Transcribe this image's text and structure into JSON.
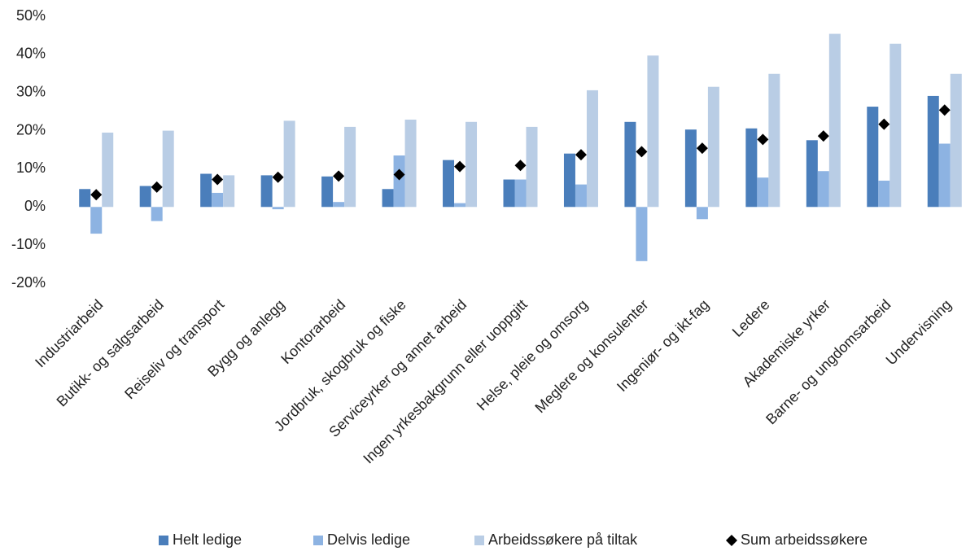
{
  "chart_data": {
    "type": "bar",
    "categories": [
      "Industriarbeid",
      "Butikk- og salgsarbeid",
      "Reiseliv og transport",
      "Bygg og anlegg",
      "Kontorarbeid",
      "Jordbruk, skogbruk og fiske",
      "Serviceyrker og annet arbeid",
      "Ingen yrkesbakgrunn eller uoppgitt",
      "Helse, pleie og omsorg",
      "Meglere og konsulenter",
      "Ingeniør- og ikt-fag",
      "Ledere",
      "Akademiske yrker",
      "Barne- og ungdomsarbeid",
      "Undervisning"
    ],
    "series": [
      {
        "name": "Helt ledige",
        "color": "#4a7ebb",
        "values": [
          4.7,
          5.5,
          8.7,
          8.3,
          8.0,
          4.7,
          12.3,
          7.2,
          14.0,
          22.3,
          20.3,
          20.6,
          17.5,
          26.3,
          29.1
        ]
      },
      {
        "name": "Delvis ledige",
        "color": "#8db3e2",
        "values": [
          -7.0,
          -3.7,
          3.7,
          -0.6,
          1.3,
          13.5,
          1.0,
          7.2,
          5.9,
          -14.2,
          -3.2,
          7.7,
          9.4,
          6.9,
          16.6
        ]
      },
      {
        "name": "Arbeidssøkere på tiltak",
        "color": "#b9cde5",
        "values": [
          19.5,
          20.0,
          8.3,
          22.6,
          21.0,
          22.9,
          22.3,
          21.0,
          30.6,
          39.7,
          31.5,
          34.9,
          45.4,
          42.8,
          34.9
        ]
      },
      {
        "name": "Sum arbeidssøkere",
        "color": "#000000",
        "type": "scatter",
        "values": [
          3.2,
          5.2,
          7.2,
          7.8,
          8.1,
          8.5,
          10.6,
          10.9,
          13.7,
          14.5,
          15.4,
          17.7,
          18.6,
          21.7,
          25.4
        ]
      }
    ],
    "ylim": [
      -20,
      50
    ],
    "yticks": [
      {
        "value": -20,
        "label": "-20%"
      },
      {
        "value": -10,
        "label": "-10%"
      },
      {
        "value": 0,
        "label": "0%"
      },
      {
        "value": 10,
        "label": "10%"
      },
      {
        "value": 20,
        "label": "20%"
      },
      {
        "value": 30,
        "label": "30%"
      },
      {
        "value": 40,
        "label": "40%"
      },
      {
        "value": 50,
        "label": "50%"
      }
    ],
    "grid": false
  }
}
